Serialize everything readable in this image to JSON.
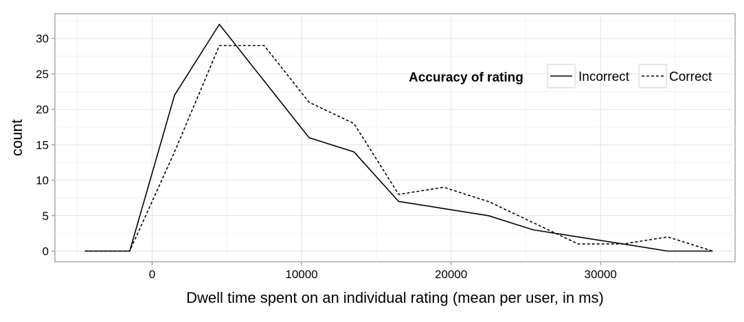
{
  "chart_data": {
    "type": "line",
    "title": "",
    "xlabel": "Dwell time spent on an individual rating (mean per user, in ms)",
    "ylabel": "count",
    "xlim": [
      -6500,
      39000
    ],
    "ylim": [
      -1.5,
      33.5
    ],
    "x_ticks": [
      0,
      10000,
      20000,
      30000
    ],
    "y_ticks": [
      0,
      5,
      10,
      15,
      20,
      25,
      30
    ],
    "grid": true,
    "legend": {
      "title": "Accuracy of rating",
      "placement": "top-right"
    },
    "series": [
      {
        "name": "Incorrect",
        "line_style": "solid",
        "x": [
          -4500,
          -1500,
          1500,
          4500,
          7500,
          10500,
          13500,
          16500,
          19500,
          22500,
          25500,
          28500,
          31500,
          34500,
          37500
        ],
        "values": [
          0,
          0,
          22,
          32,
          24,
          16,
          14,
          7,
          6,
          5,
          3,
          2,
          1,
          0,
          0
        ]
      },
      {
        "name": "Correct",
        "line_style": "dashed",
        "x": [
          -4500,
          -1500,
          1500,
          4500,
          7500,
          10500,
          13500,
          16500,
          19500,
          22500,
          25500,
          28500,
          31500,
          34500,
          37500
        ],
        "values": [
          0,
          0,
          14,
          29,
          29,
          21,
          18,
          8,
          9,
          7,
          4,
          1,
          1,
          2,
          0
        ]
      }
    ]
  }
}
